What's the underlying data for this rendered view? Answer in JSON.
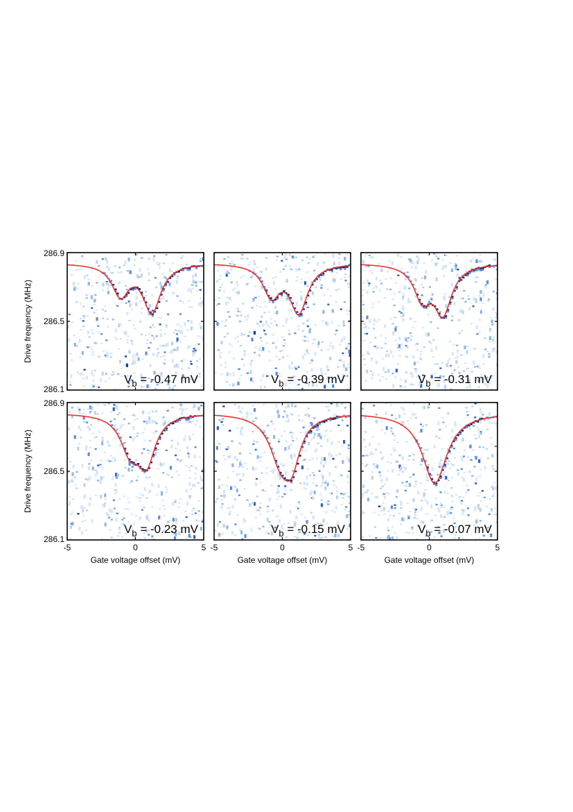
{
  "chart_data": {
    "type": "heatmap",
    "layout": "2x3 grid of panels",
    "xlabel": "Gate voltage offset (mV)",
    "ylabel": "Drive frequency (MHz)",
    "xlim": [
      -5,
      5
    ],
    "ylim": [
      286.1,
      286.9
    ],
    "x_ticks": [
      "-5",
      "0",
      "5"
    ],
    "y_ticks": [
      "286.9",
      "286.5",
      "286.1"
    ],
    "colormap": "white-to-dark-blue",
    "fit_color": "#e8322b",
    "panels": [
      {
        "label_main": "V",
        "label_sub": "b",
        "label_value": " = -0.47 mV",
        "vb_mV": -0.47,
        "baseline": 286.84,
        "dips": [
          {
            "x0": -1.1,
            "depth": 0.18,
            "width": 0.75
          },
          {
            "x0": 1.2,
            "depth": 0.28,
            "width": 0.8
          }
        ]
      },
      {
        "label_main": "V",
        "label_sub": "b",
        "label_value": " = -0.39 mV",
        "vb_mV": -0.39,
        "baseline": 286.84,
        "dips": [
          {
            "x0": -0.8,
            "depth": 0.18,
            "width": 0.75
          },
          {
            "x0": 1.2,
            "depth": 0.28,
            "width": 0.8
          }
        ]
      },
      {
        "label_main": "V",
        "label_sub": "b",
        "label_value": " = -0.31 mV",
        "vb_mV": -0.31,
        "baseline": 286.84,
        "dips": [
          {
            "x0": -0.5,
            "depth": 0.19,
            "width": 0.75
          },
          {
            "x0": 1.0,
            "depth": 0.28,
            "width": 0.8
          }
        ]
      },
      {
        "label_main": "V",
        "label_sub": "b",
        "label_value": " = -0.23 mV",
        "vb_mV": -0.23,
        "baseline": 286.84,
        "dips": [
          {
            "x0": -0.4,
            "depth": 0.2,
            "width": 0.85
          },
          {
            "x0": 0.8,
            "depth": 0.27,
            "width": 0.8
          }
        ]
      },
      {
        "label_main": "V",
        "label_sub": "b",
        "label_value": " = -0.15 mV",
        "vb_mV": -0.15,
        "baseline": 286.84,
        "dips": [
          {
            "x0": -0.1,
            "depth": 0.26,
            "width": 1.0
          },
          {
            "x0": 0.7,
            "depth": 0.22,
            "width": 0.75
          }
        ]
      },
      {
        "label_main": "V",
        "label_sub": "b",
        "label_value": " = -0.07 mV",
        "vb_mV": -0.07,
        "baseline": 286.84,
        "dips": [
          {
            "x0": 0.4,
            "depth": 0.41,
            "width": 1.1
          }
        ]
      }
    ]
  }
}
